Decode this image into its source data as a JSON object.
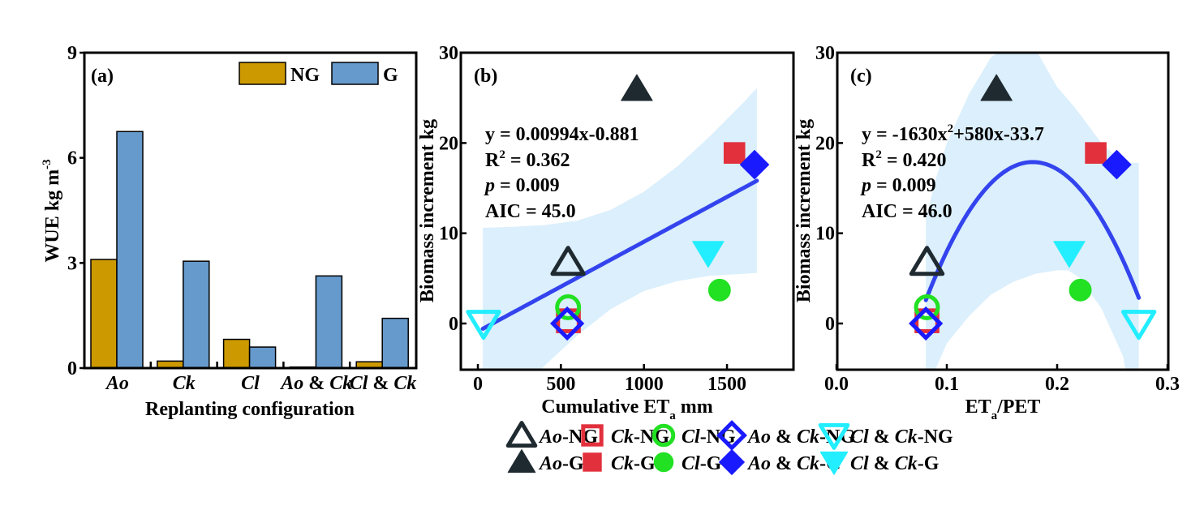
{
  "colors": {
    "NG": "#cc9900",
    "G": "#6699cc",
    "band": "#dbeffc",
    "fit": "#3344ee",
    "Ao": "#1f2a30",
    "Ck": "#e2303c",
    "Cl": "#22e022",
    "AoCk": "#1a1aff",
    "ClCk": "#22eeff"
  },
  "chart_data": [
    {
      "panel_label": "(a)",
      "type": "bar",
      "xlabel": "Replanting configuration",
      "ylabel": "WUE kg m",
      "ylabel_sup": "-3",
      "ylim": [
        0,
        9
      ],
      "yticks": [
        "0",
        "3",
        "6",
        "9"
      ],
      "categories": [
        [
          {
            "t": "Ao",
            "i": true
          }
        ],
        [
          {
            "t": "Ck",
            "i": true
          }
        ],
        [
          {
            "t": "Cl",
            "i": true
          }
        ],
        [
          {
            "t": "Ao",
            "i": true
          },
          {
            "t": " & "
          },
          {
            "t": "Ck",
            "i": true
          }
        ],
        [
          {
            "t": "Cl",
            "i": true
          },
          {
            "t": " & "
          },
          {
            "t": "Ck",
            "i": true
          }
        ]
      ],
      "legend_position": "top-right",
      "series": [
        {
          "name": "NG",
          "values": [
            3.1,
            0.2,
            0.82,
            0.03,
            0.18
          ]
        },
        {
          "name": "G",
          "values": [
            6.75,
            3.05,
            0.6,
            2.63,
            1.42
          ]
        }
      ]
    },
    {
      "panel_label": "(b)",
      "type": "scatter",
      "xlabel": "Cumulative ET",
      "xlabel_sub": "a",
      "xlabel_tail": " mm",
      "ylabel": "Biomass increment kg",
      "xlim": [
        -100,
        1900
      ],
      "ylim": [
        -5,
        30
      ],
      "xticks": [
        0,
        500,
        1000,
        1500
      ],
      "yticks": [
        0,
        10,
        20,
        30
      ],
      "annotation": {
        "eq": "y = 0.00994x-0.881",
        "r2_label": "R",
        "r2_sup": "2",
        "r2_val": " = 0.362",
        "p_label": "p",
        "p_val": " = 0.009",
        "aic": "AIC = 45.0"
      },
      "fit": {
        "type": "linear",
        "slope": 0.00994,
        "intercept": -0.881,
        "x_range": [
          30,
          1680
        ]
      },
      "confidence_band": {
        "x": [
          30,
          200,
          400,
          600,
          800,
          1000,
          1200,
          1400,
          1600,
          1680
        ],
        "lower": [
          -11.8,
          -8.5,
          -4.7,
          -1.3,
          1.6,
          3.6,
          4.7,
          5.3,
          5.5,
          5.6
        ],
        "upper": [
          10.6,
          10.7,
          10.9,
          11.4,
          12.6,
          14.6,
          17.4,
          20.8,
          24.5,
          26.1
        ]
      },
      "points": [
        {
          "series": "Ao-NG",
          "x": 543,
          "y": 6.8
        },
        {
          "series": "Ao-G",
          "x": 957,
          "y": 26
        },
        {
          "series": "Ck-NG",
          "x": 545,
          "y": 0.3
        },
        {
          "series": "Ck-G",
          "x": 1545,
          "y": 18.9
        },
        {
          "series": "Cl-NG",
          "x": 543,
          "y": 1.8
        },
        {
          "series": "Cl-G",
          "x": 1455,
          "y": 3.7
        },
        {
          "series": "Ao & Ck-NG",
          "x": 538,
          "y": 0
        },
        {
          "series": "Ao & Ck-G",
          "x": 1666,
          "y": 17.6
        },
        {
          "series": "Cl & Ck-NG",
          "x": 34,
          "y": 0
        },
        {
          "series": "Cl & Ck-G",
          "x": 1387,
          "y": 7.8
        }
      ]
    },
    {
      "panel_label": "(c)",
      "type": "scatter",
      "xlabel": "ET",
      "xlabel_sub": "a",
      "xlabel_tail": "/PET",
      "ylabel": "Biomass increment kg",
      "xlim": [
        0,
        0.3
      ],
      "ylim": [
        -5,
        30
      ],
      "xticks": [
        "0.0",
        "0.1",
        "0.2",
        "0.3"
      ],
      "yticks": [
        0,
        10,
        20,
        30
      ],
      "annotation": {
        "eq": "y = -1630x",
        "eq_sup": "2",
        "eq_tail": "+580x-33.7",
        "r2_label": "R",
        "r2_sup": "2",
        "r2_val": " = 0.420",
        "p_label": "p",
        "p_val": " = 0.009",
        "aic": "AIC = 46.0"
      },
      "fit": {
        "type": "quadratic",
        "a": -1630,
        "b": 580,
        "c": -33.7,
        "x_range": [
          0.081,
          0.274
        ]
      },
      "confidence_band": {
        "x": [
          0.081,
          0.09,
          0.1,
          0.12,
          0.14,
          0.16,
          0.18,
          0.2,
          0.21,
          0.22,
          0.24,
          0.26,
          0.274
        ],
        "lower": [
          -15,
          -5,
          -2.2,
          0.8,
          3.2,
          4.6,
          5.5,
          5.9,
          5.9,
          5.1,
          1.7,
          -3.7,
          -15
        ],
        "upper": [
          11.6,
          16,
          20,
          25.4,
          29.5,
          31,
          30.5,
          26.2,
          24.8,
          23.3,
          20,
          17.8,
          17.8
        ]
      },
      "points": [
        {
          "series": "Ao-NG",
          "x": 0.082,
          "y": 6.8
        },
        {
          "series": "Ao-G",
          "x": 0.145,
          "y": 26
        },
        {
          "series": "Ck-NG",
          "x": 0.082,
          "y": 0.3
        },
        {
          "series": "Ck-G",
          "x": 0.235,
          "y": 18.9
        },
        {
          "series": "Cl-NG",
          "x": 0.082,
          "y": 1.8
        },
        {
          "series": "Cl-G",
          "x": 0.221,
          "y": 3.7
        },
        {
          "series": "Ao & Ck-NG",
          "x": 0.081,
          "y": 0
        },
        {
          "series": "Ao & Ck-G",
          "x": 0.254,
          "y": 17.6
        },
        {
          "series": "Cl & Ck-NG",
          "x": 0.274,
          "y": 0
        },
        {
          "series": "Cl & Ck-G",
          "x": 0.211,
          "y": 7.8
        }
      ]
    }
  ],
  "legend": [
    {
      "name": "Ao-NG",
      "marker": "triangle-up",
      "filled": false,
      "color_key": "Ao",
      "parts": [
        {
          "t": "Ao",
          "i": true
        },
        {
          "t": "-NG"
        }
      ]
    },
    {
      "name": "Ck-NG",
      "marker": "square",
      "filled": false,
      "color_key": "Ck",
      "parts": [
        {
          "t": "Ck",
          "i": true
        },
        {
          "t": "-NG"
        }
      ]
    },
    {
      "name": "Cl-NG",
      "marker": "circle",
      "filled": false,
      "color_key": "Cl",
      "parts": [
        {
          "t": "Cl",
          "i": true
        },
        {
          "t": "-NG"
        }
      ]
    },
    {
      "name": "Ao & Ck-NG",
      "marker": "diamond",
      "filled": false,
      "color_key": "AoCk",
      "parts": [
        {
          "t": "Ao",
          "i": true
        },
        {
          "t": " & "
        },
        {
          "t": "Ck",
          "i": true
        },
        {
          "t": "-NG"
        }
      ]
    },
    {
      "name": "Cl & Ck-NG",
      "marker": "triangle-down",
      "filled": false,
      "color_key": "ClCk",
      "parts": [
        {
          "t": "Cl",
          "i": true
        },
        {
          "t": " & "
        },
        {
          "t": "Ck",
          "i": true
        },
        {
          "t": "-NG"
        }
      ]
    },
    {
      "name": "Ao-G",
      "marker": "triangle-up",
      "filled": true,
      "color_key": "Ao",
      "parts": [
        {
          "t": "Ao",
          "i": true
        },
        {
          "t": "-G"
        }
      ]
    },
    {
      "name": "Ck-G",
      "marker": "square",
      "filled": true,
      "color_key": "Ck",
      "parts": [
        {
          "t": "Ck",
          "i": true
        },
        {
          "t": "-G"
        }
      ]
    },
    {
      "name": "Cl-G",
      "marker": "circle",
      "filled": true,
      "color_key": "Cl",
      "parts": [
        {
          "t": "Cl",
          "i": true
        },
        {
          "t": "-G"
        }
      ]
    },
    {
      "name": "Ao & Ck-G",
      "marker": "diamond",
      "filled": true,
      "color_key": "AoCk",
      "parts": [
        {
          "t": "Ao",
          "i": true
        },
        {
          "t": " & "
        },
        {
          "t": "Ck",
          "i": true
        },
        {
          "t": "-G"
        }
      ]
    },
    {
      "name": "Cl & Ck-G",
      "marker": "triangle-down",
      "filled": true,
      "color_key": "ClCk",
      "parts": [
        {
          "t": "Cl",
          "i": true
        },
        {
          "t": " & "
        },
        {
          "t": "Ck",
          "i": true
        },
        {
          "t": "-G"
        }
      ]
    }
  ]
}
